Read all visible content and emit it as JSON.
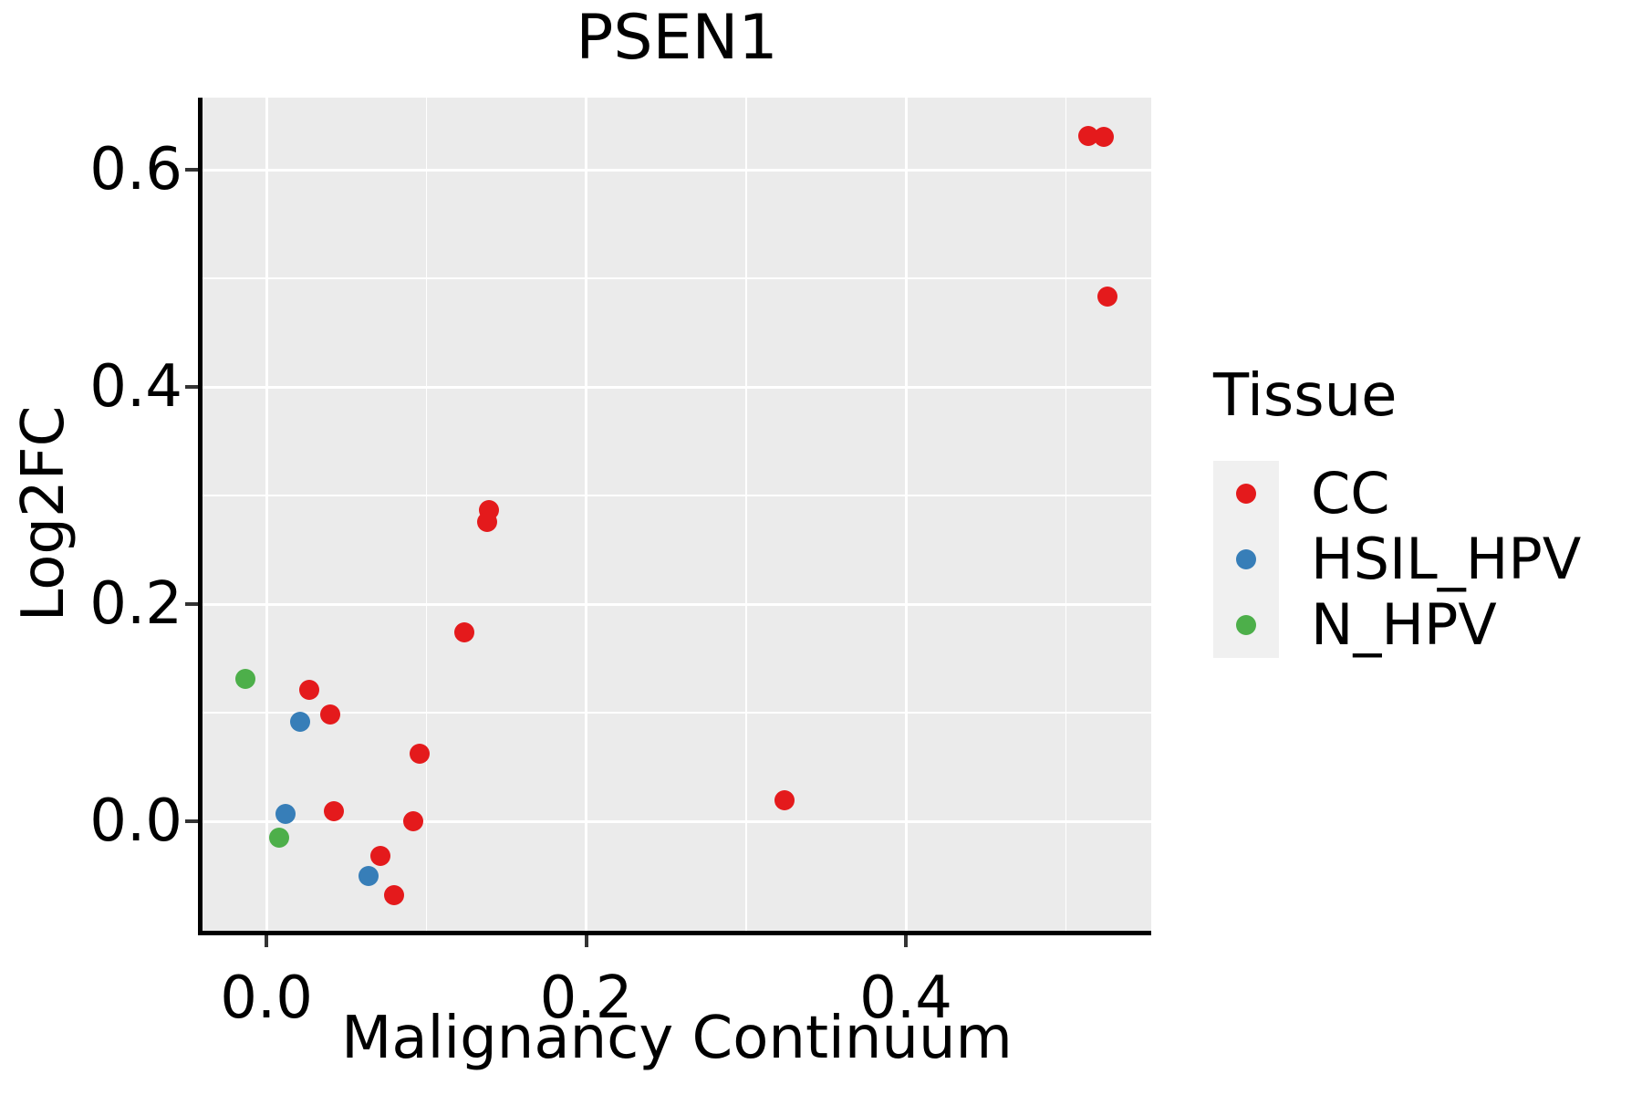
{
  "title": "PSEN1",
  "chart_data": {
    "type": "scatter",
    "title": "PSEN1",
    "xlabel": "Malignancy Continuum",
    "ylabel": "Log2FC",
    "xlim": [
      -0.04,
      0.5535
    ],
    "ylim": [
      -0.1008,
      0.6664
    ],
    "x_ticks": [
      0.0,
      0.2,
      0.4
    ],
    "x_tick_labels": [
      "0.0",
      "0.2",
      "0.4"
    ],
    "y_ticks": [
      0.0,
      0.2,
      0.4,
      0.6
    ],
    "y_tick_labels": [
      "0.0",
      "0.2",
      "0.4",
      "0.6"
    ],
    "x_minor_ticks": [
      0.1,
      0.3,
      0.5
    ],
    "y_minor_ticks": [
      0.1,
      0.3,
      0.5
    ],
    "grid": true,
    "legend_position": "right",
    "legend_title": "Tissue",
    "series": [
      {
        "name": "CC",
        "color": "#E41A1C",
        "points": [
          [
            0.514,
            0.631
          ],
          [
            0.524,
            0.63
          ],
          [
            0.526,
            0.483
          ],
          [
            0.139,
            0.287
          ],
          [
            0.138,
            0.276
          ],
          [
            0.124,
            0.174
          ],
          [
            0.027,
            0.121
          ],
          [
            0.04,
            0.098
          ],
          [
            0.096,
            0.062
          ],
          [
            0.324,
            0.019
          ],
          [
            0.042,
            0.009
          ],
          [
            0.092,
            0.0
          ],
          [
            0.071,
            -0.032
          ],
          [
            0.08,
            -0.068
          ]
        ]
      },
      {
        "name": "HSIL_HPV",
        "color": "#377EB8",
        "points": [
          [
            0.021,
            0.092
          ],
          [
            0.012,
            0.007
          ],
          [
            0.064,
            -0.05
          ]
        ]
      },
      {
        "name": "N_HPV",
        "color": "#4DAF4A",
        "points": [
          [
            -0.013,
            0.131
          ],
          [
            0.008,
            -0.015
          ]
        ]
      }
    ]
  },
  "colors": {
    "panel_bg": "#EBEBEB",
    "grid": "#FFFFFF",
    "legend_key_bg": "#F0F0F0",
    "axis_line": "#000000",
    "tick": "#333333",
    "text": "#000000"
  }
}
